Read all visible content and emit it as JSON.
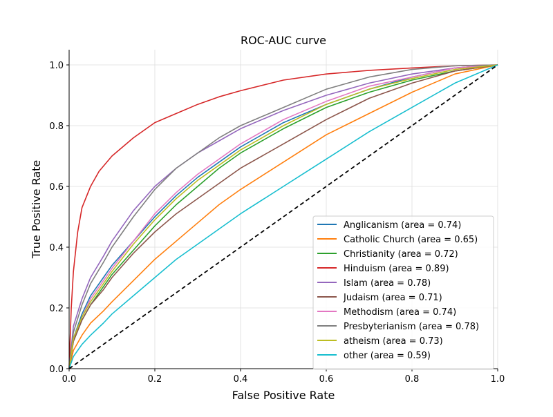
{
  "chart_data": {
    "type": "line",
    "title": "ROC-AUC curve",
    "xlabel": "False Positive Rate",
    "ylabel": "True Positive Rate",
    "xlim": [
      0,
      1
    ],
    "ylim": [
      0,
      1.05
    ],
    "xticks": [
      "0.0",
      "0.2",
      "0.4",
      "0.6",
      "0.8",
      "1.0"
    ],
    "yticks": [
      "0.0",
      "0.2",
      "0.4",
      "0.6",
      "0.8",
      "1.0"
    ],
    "grid": true,
    "legend_position": "lower-right",
    "diagonal": {
      "x": [
        0,
        1
      ],
      "y": [
        0,
        1
      ],
      "color": "#000000",
      "style": "dashed"
    },
    "series": [
      {
        "name": "Anglicanism (area = 0.74)",
        "color": "#1f77b4",
        "x": [
          0,
          0.01,
          0.03,
          0.05,
          0.08,
          0.1,
          0.15,
          0.2,
          0.25,
          0.3,
          0.35,
          0.4,
          0.5,
          0.6,
          0.7,
          0.8,
          0.9,
          1.0
        ],
        "y": [
          0,
          0.1,
          0.18,
          0.24,
          0.3,
          0.34,
          0.42,
          0.5,
          0.57,
          0.63,
          0.68,
          0.73,
          0.81,
          0.87,
          0.92,
          0.96,
          0.99,
          1.0
        ]
      },
      {
        "name": "Catholic Church (area = 0.65)",
        "color": "#ff7f0e",
        "x": [
          0,
          0.01,
          0.03,
          0.05,
          0.08,
          0.1,
          0.15,
          0.2,
          0.25,
          0.3,
          0.35,
          0.4,
          0.5,
          0.6,
          0.7,
          0.8,
          0.9,
          1.0
        ],
        "y": [
          0,
          0.06,
          0.11,
          0.15,
          0.19,
          0.22,
          0.29,
          0.36,
          0.42,
          0.48,
          0.54,
          0.59,
          0.68,
          0.77,
          0.84,
          0.91,
          0.97,
          1.0
        ]
      },
      {
        "name": "Christianity (area = 0.72)",
        "color": "#2ca02c",
        "x": [
          0,
          0.01,
          0.03,
          0.05,
          0.08,
          0.1,
          0.15,
          0.2,
          0.25,
          0.3,
          0.35,
          0.4,
          0.5,
          0.6,
          0.7,
          0.8,
          0.9,
          1.0
        ],
        "y": [
          0,
          0.09,
          0.16,
          0.21,
          0.27,
          0.31,
          0.39,
          0.47,
          0.54,
          0.6,
          0.66,
          0.71,
          0.79,
          0.86,
          0.91,
          0.95,
          0.98,
          1.0
        ]
      },
      {
        "name": "Hinduism (area = 0.89)",
        "color": "#d62728",
        "x": [
          0,
          0.005,
          0.01,
          0.02,
          0.03,
          0.05,
          0.07,
          0.1,
          0.15,
          0.2,
          0.25,
          0.3,
          0.35,
          0.4,
          0.5,
          0.6,
          0.7,
          0.8,
          0.9,
          1.0
        ],
        "y": [
          0,
          0.2,
          0.32,
          0.45,
          0.53,
          0.6,
          0.65,
          0.7,
          0.76,
          0.81,
          0.84,
          0.87,
          0.895,
          0.915,
          0.95,
          0.97,
          0.982,
          0.99,
          0.997,
          1.0
        ]
      },
      {
        "name": "Islam (area = 0.78)",
        "color": "#9467bd",
        "x": [
          0,
          0.01,
          0.03,
          0.05,
          0.08,
          0.1,
          0.15,
          0.2,
          0.25,
          0.3,
          0.35,
          0.4,
          0.5,
          0.6,
          0.7,
          0.8,
          0.9,
          1.0
        ],
        "y": [
          0,
          0.14,
          0.23,
          0.3,
          0.37,
          0.42,
          0.52,
          0.6,
          0.66,
          0.71,
          0.75,
          0.79,
          0.85,
          0.9,
          0.94,
          0.97,
          0.99,
          1.0
        ]
      },
      {
        "name": "Judaism (area = 0.71)",
        "color": "#8c564b",
        "x": [
          0,
          0.01,
          0.03,
          0.05,
          0.08,
          0.1,
          0.15,
          0.2,
          0.25,
          0.3,
          0.35,
          0.4,
          0.5,
          0.6,
          0.7,
          0.8,
          0.9,
          1.0
        ],
        "y": [
          0,
          0.09,
          0.16,
          0.21,
          0.26,
          0.3,
          0.38,
          0.45,
          0.51,
          0.56,
          0.61,
          0.66,
          0.74,
          0.82,
          0.89,
          0.94,
          0.98,
          1.0
        ]
      },
      {
        "name": "Methodism (area = 0.74)",
        "color": "#e377c2",
        "x": [
          0,
          0.01,
          0.03,
          0.05,
          0.08,
          0.1,
          0.15,
          0.2,
          0.25,
          0.3,
          0.35,
          0.4,
          0.5,
          0.6,
          0.7,
          0.8,
          0.9,
          1.0
        ],
        "y": [
          0,
          0.1,
          0.17,
          0.23,
          0.29,
          0.33,
          0.42,
          0.51,
          0.58,
          0.64,
          0.69,
          0.74,
          0.82,
          0.88,
          0.93,
          0.96,
          0.99,
          1.0
        ]
      },
      {
        "name": "Presbyterianism (area = 0.78)",
        "color": "#7f7f7f",
        "x": [
          0,
          0.01,
          0.03,
          0.05,
          0.08,
          0.1,
          0.15,
          0.2,
          0.25,
          0.3,
          0.35,
          0.4,
          0.5,
          0.6,
          0.7,
          0.8,
          0.9,
          1.0
        ],
        "y": [
          0,
          0.12,
          0.21,
          0.28,
          0.35,
          0.4,
          0.5,
          0.59,
          0.66,
          0.71,
          0.76,
          0.8,
          0.86,
          0.92,
          0.96,
          0.985,
          0.997,
          1.0
        ]
      },
      {
        "name": "atheism (area = 0.73)",
        "color": "#bcbd22",
        "x": [
          0,
          0.01,
          0.03,
          0.05,
          0.08,
          0.1,
          0.15,
          0.2,
          0.25,
          0.3,
          0.35,
          0.4,
          0.5,
          0.6,
          0.7,
          0.8,
          0.9,
          1.0
        ],
        "y": [
          0,
          0.1,
          0.17,
          0.22,
          0.28,
          0.32,
          0.41,
          0.49,
          0.56,
          0.62,
          0.67,
          0.72,
          0.8,
          0.87,
          0.92,
          0.955,
          0.985,
          1.0
        ]
      },
      {
        "name": "other (area = 0.59)",
        "color": "#17becf",
        "x": [
          0,
          0.01,
          0.03,
          0.05,
          0.08,
          0.1,
          0.15,
          0.2,
          0.25,
          0.3,
          0.35,
          0.4,
          0.5,
          0.6,
          0.7,
          0.8,
          0.9,
          1.0
        ],
        "y": [
          0,
          0.04,
          0.08,
          0.11,
          0.15,
          0.18,
          0.24,
          0.3,
          0.36,
          0.41,
          0.46,
          0.51,
          0.6,
          0.69,
          0.78,
          0.86,
          0.94,
          1.0
        ]
      }
    ]
  }
}
